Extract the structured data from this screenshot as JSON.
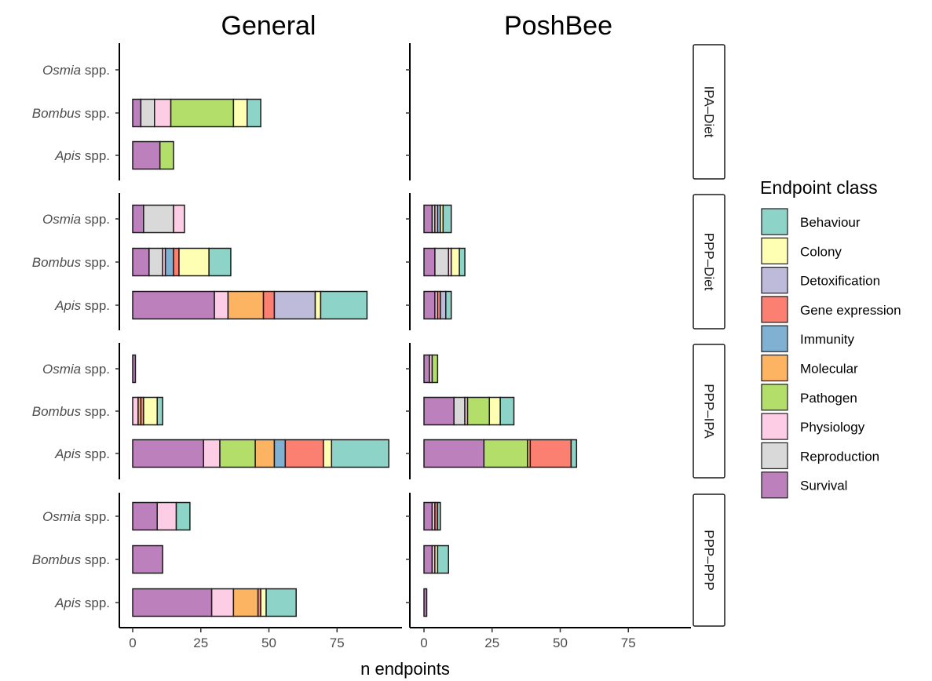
{
  "chart_data": {
    "type": "bar",
    "orientation": "horizontal",
    "stacked": true,
    "columns": [
      "General",
      "PoshBee"
    ],
    "rows": [
      "IPA–Diet",
      "PPP–Diet",
      "PPP–IPA",
      "PPP–PPP"
    ],
    "species": [
      {
        "genus": "Osmia",
        "suffix": " spp."
      },
      {
        "genus": "Bombus",
        "suffix": " spp."
      },
      {
        "genus": "Apis",
        "suffix": " spp."
      }
    ],
    "xlabel": "n endpoints",
    "xlim": [
      0,
      95
    ],
    "xticks": [
      "0",
      "25",
      "50",
      "75"
    ],
    "legend": {
      "title": "Endpoint class",
      "position": "right",
      "items": [
        {
          "name": "Behaviour",
          "color": "#8dd3c7"
        },
        {
          "name": "Colony",
          "color": "#ffffb3"
        },
        {
          "name": "Detoxification",
          "color": "#bebada"
        },
        {
          "name": "Gene expression",
          "color": "#fb8072"
        },
        {
          "name": "Immunity",
          "color": "#80b1d3"
        },
        {
          "name": "Molecular",
          "color": "#fdb462"
        },
        {
          "name": "Pathogen",
          "color": "#b3de69"
        },
        {
          "name": "Physiology",
          "color": "#fccde5"
        },
        {
          "name": "Reproduction",
          "color": "#d9d9d9"
        },
        {
          "name": "Survival",
          "color": "#bc80bd"
        }
      ]
    },
    "stack_order": [
      "Survival",
      "Reproduction",
      "Physiology",
      "Pathogen",
      "Molecular",
      "Immunity",
      "Gene expression",
      "Detoxification",
      "Colony",
      "Behaviour"
    ],
    "panels": [
      {
        "row": 0,
        "col": 0,
        "bars": [
          {
            "species": 0,
            "segments": []
          },
          {
            "species": 1,
            "segments": [
              [
                "Survival",
                3
              ],
              [
                "Reproduction",
                5
              ],
              [
                "Physiology",
                6
              ],
              [
                "Pathogen",
                23
              ],
              [
                "Colony",
                5
              ],
              [
                "Behaviour",
                5
              ]
            ]
          },
          {
            "species": 2,
            "segments": [
              [
                "Survival",
                10
              ],
              [
                "Pathogen",
                5
              ]
            ]
          }
        ]
      },
      {
        "row": 0,
        "col": 1,
        "bars": [
          {
            "species": 0,
            "segments": []
          },
          {
            "species": 1,
            "segments": []
          },
          {
            "species": 2,
            "segments": []
          }
        ]
      },
      {
        "row": 1,
        "col": 0,
        "bars": [
          {
            "species": 0,
            "segments": [
              [
                "Survival",
                4
              ],
              [
                "Reproduction",
                11
              ],
              [
                "Physiology",
                4
              ]
            ]
          },
          {
            "species": 1,
            "segments": [
              [
                "Survival",
                6
              ],
              [
                "Reproduction",
                5
              ],
              [
                "Physiology",
                1
              ],
              [
                "Immunity",
                3
              ],
              [
                "Gene expression",
                2
              ],
              [
                "Colony",
                11
              ],
              [
                "Behaviour",
                8
              ]
            ]
          },
          {
            "species": 2,
            "segments": [
              [
                "Survival",
                30
              ],
              [
                "Physiology",
                5
              ],
              [
                "Molecular",
                13
              ],
              [
                "Gene expression",
                4
              ],
              [
                "Detoxification",
                15
              ],
              [
                "Colony",
                2
              ],
              [
                "Behaviour",
                17
              ]
            ]
          }
        ]
      },
      {
        "row": 1,
        "col": 1,
        "bars": [
          {
            "species": 0,
            "segments": [
              [
                "Survival",
                3
              ],
              [
                "Reproduction",
                1
              ],
              [
                "Physiology",
                1
              ],
              [
                "Immunity",
                1
              ],
              [
                "Colony",
                1
              ],
              [
                "Behaviour",
                3
              ]
            ]
          },
          {
            "species": 1,
            "segments": [
              [
                "Survival",
                4
              ],
              [
                "Reproduction",
                5
              ],
              [
                "Physiology",
                1
              ],
              [
                "Colony",
                3
              ],
              [
                "Behaviour",
                2
              ]
            ]
          },
          {
            "species": 2,
            "segments": [
              [
                "Survival",
                4
              ],
              [
                "Physiology",
                1
              ],
              [
                "Gene expression",
                1
              ],
              [
                "Detoxification",
                2
              ],
              [
                "Behaviour",
                2
              ]
            ]
          }
        ]
      },
      {
        "row": 2,
        "col": 0,
        "bars": [
          {
            "species": 0,
            "segments": [
              [
                "Survival",
                1
              ]
            ]
          },
          {
            "species": 1,
            "segments": [
              [
                "Physiology",
                2
              ],
              [
                "Molecular",
                1
              ],
              [
                "Gene expression",
                1
              ],
              [
                "Colony",
                5
              ],
              [
                "Behaviour",
                2
              ]
            ]
          },
          {
            "species": 2,
            "segments": [
              [
                "Survival",
                26
              ],
              [
                "Physiology",
                6
              ],
              [
                "Pathogen",
                13
              ],
              [
                "Molecular",
                7
              ],
              [
                "Immunity",
                4
              ],
              [
                "Gene expression",
                14
              ],
              [
                "Colony",
                3
              ],
              [
                "Behaviour",
                21
              ]
            ]
          }
        ]
      },
      {
        "row": 2,
        "col": 1,
        "bars": [
          {
            "species": 0,
            "segments": [
              [
                "Survival",
                2
              ],
              [
                "Physiology",
                1
              ],
              [
                "Pathogen",
                2
              ]
            ]
          },
          {
            "species": 1,
            "segments": [
              [
                "Survival",
                11
              ],
              [
                "Reproduction",
                4
              ],
              [
                "Physiology",
                1
              ],
              [
                "Pathogen",
                8
              ],
              [
                "Colony",
                4
              ],
              [
                "Behaviour",
                5
              ]
            ]
          },
          {
            "species": 2,
            "segments": [
              [
                "Survival",
                22
              ],
              [
                "Pathogen",
                16
              ],
              [
                "Molecular",
                1
              ],
              [
                "Gene expression",
                15
              ],
              [
                "Behaviour",
                2
              ]
            ]
          }
        ]
      },
      {
        "row": 3,
        "col": 0,
        "bars": [
          {
            "species": 0,
            "segments": [
              [
                "Survival",
                9
              ],
              [
                "Physiology",
                7
              ],
              [
                "Behaviour",
                5
              ]
            ]
          },
          {
            "species": 1,
            "segments": [
              [
                "Survival",
                11
              ]
            ]
          },
          {
            "species": 2,
            "segments": [
              [
                "Survival",
                29
              ],
              [
                "Physiology",
                8
              ],
              [
                "Molecular",
                9
              ],
              [
                "Gene expression",
                1
              ],
              [
                "Colony",
                2
              ],
              [
                "Behaviour",
                11
              ]
            ]
          }
        ]
      },
      {
        "row": 3,
        "col": 1,
        "bars": [
          {
            "species": 0,
            "segments": [
              [
                "Survival",
                3
              ],
              [
                "Physiology",
                1
              ],
              [
                "Gene expression",
                1
              ],
              [
                "Behaviour",
                1
              ]
            ]
          },
          {
            "species": 1,
            "segments": [
              [
                "Survival",
                3
              ],
              [
                "Physiology",
                1
              ],
              [
                "Colony",
                1
              ],
              [
                "Behaviour",
                4
              ]
            ]
          },
          {
            "species": 2,
            "segments": [
              [
                "Survival",
                1
              ]
            ]
          }
        ]
      }
    ]
  }
}
